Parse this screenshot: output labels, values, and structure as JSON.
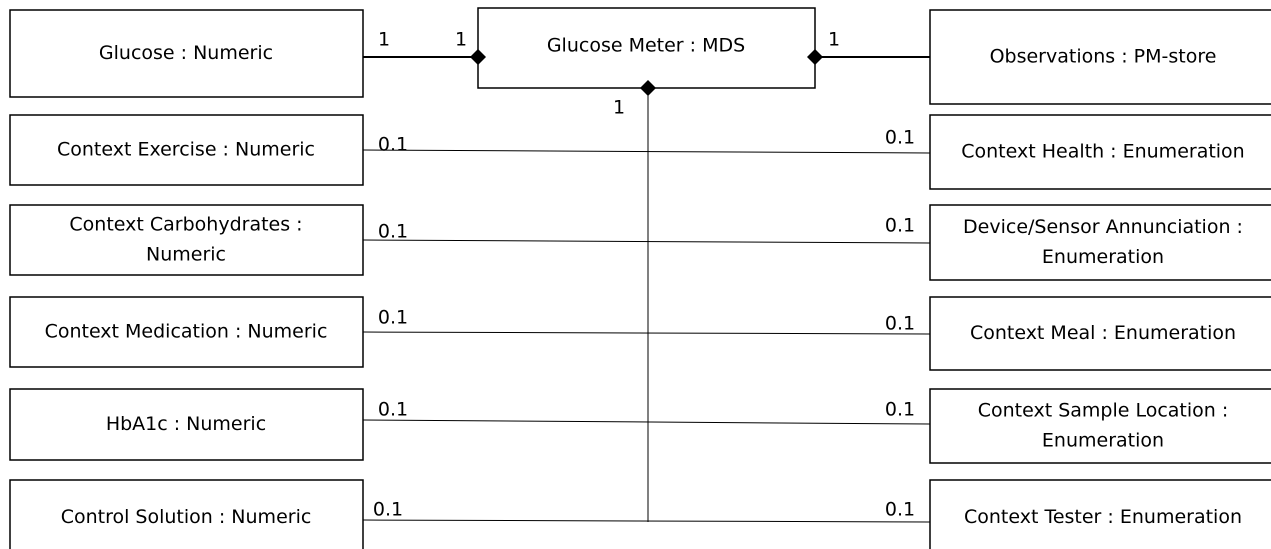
{
  "center": {
    "label": "Glucose Meter : MDS",
    "mult_left": "1",
    "mult_right": "1",
    "mult_bottom": "1"
  },
  "left": [
    {
      "lines": [
        "Glucose : Numeric"
      ],
      "mult": "1"
    },
    {
      "lines": [
        "Context Exercise : Numeric"
      ],
      "mult": "0.1"
    },
    {
      "lines": [
        "Context Carbohydrates :",
        "Numeric"
      ],
      "mult": "0.1"
    },
    {
      "lines": [
        "Context Medication : Numeric"
      ],
      "mult": "0.1"
    },
    {
      "lines": [
        "HbA1c : Numeric"
      ],
      "mult": "0.1"
    },
    {
      "lines": [
        "Control Solution : Numeric"
      ],
      "mult": "0.1"
    }
  ],
  "right": [
    {
      "lines": [
        "Observations : PM-store"
      ],
      "mult": "1"
    },
    {
      "lines": [
        "Context Health : Enumeration"
      ],
      "mult": "0.1"
    },
    {
      "lines": [
        "Device/Sensor Annunciation :",
        "Enumeration"
      ],
      "mult": "0.1"
    },
    {
      "lines": [
        "Context Meal : Enumeration"
      ],
      "mult": "0.1"
    },
    {
      "lines": [
        "Context Sample Location :",
        "Enumeration"
      ],
      "mult": "0.1"
    },
    {
      "lines": [
        "Context Tester : Enumeration"
      ],
      "mult": "0.1"
    }
  ]
}
